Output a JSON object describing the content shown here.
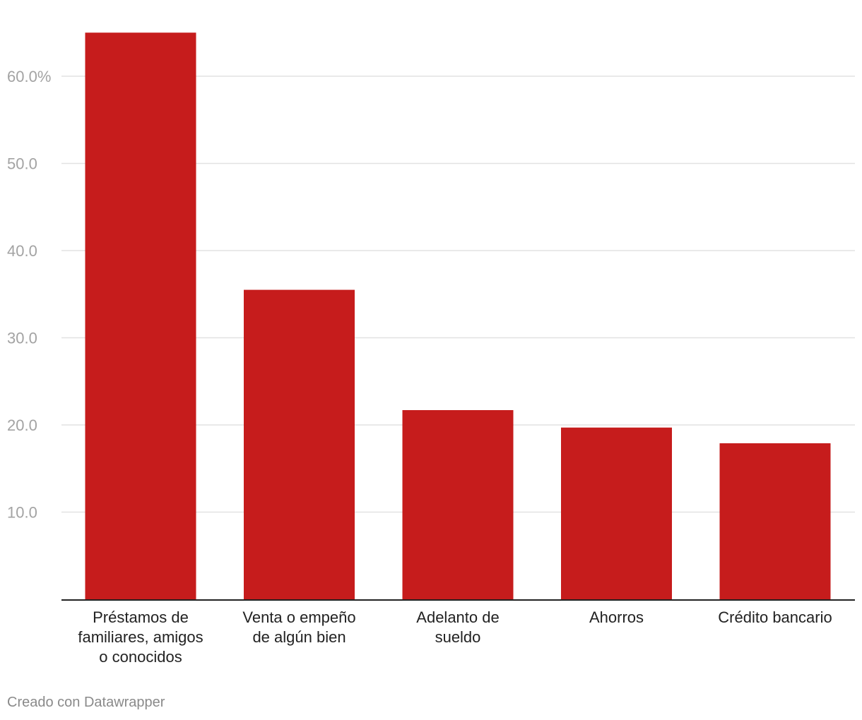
{
  "chart_data": {
    "type": "bar",
    "categories": [
      "Préstamos de familiares, amigos o conocidos",
      "Venta o empeño de algún bien",
      "Adelanto de sueldo",
      "Ahorros",
      "Crédito bancario"
    ],
    "category_label_lines": [
      [
        "Préstamos de",
        "familiares, amigos",
        "o conocidos"
      ],
      [
        "Venta o empeño",
        "de algún bien"
      ],
      [
        "Adelanto de",
        "sueldo"
      ],
      [
        "Ahorros"
      ],
      [
        "Crédito bancario"
      ]
    ],
    "values": [
      65.0,
      35.5,
      21.7,
      19.7,
      17.9
    ],
    "y_ticks": [
      10,
      20,
      30,
      40,
      50,
      60
    ],
    "y_tick_labels": [
      "10.0",
      "20.0",
      "30.0",
      "40.0",
      "50.0",
      "60.0%"
    ],
    "ylim": [
      0,
      68
    ],
    "grid": true,
    "bar_color": "#c61c1c",
    "title": "",
    "xlabel": "",
    "ylabel": ""
  },
  "footer": {
    "credit": "Creado con Datawrapper"
  }
}
